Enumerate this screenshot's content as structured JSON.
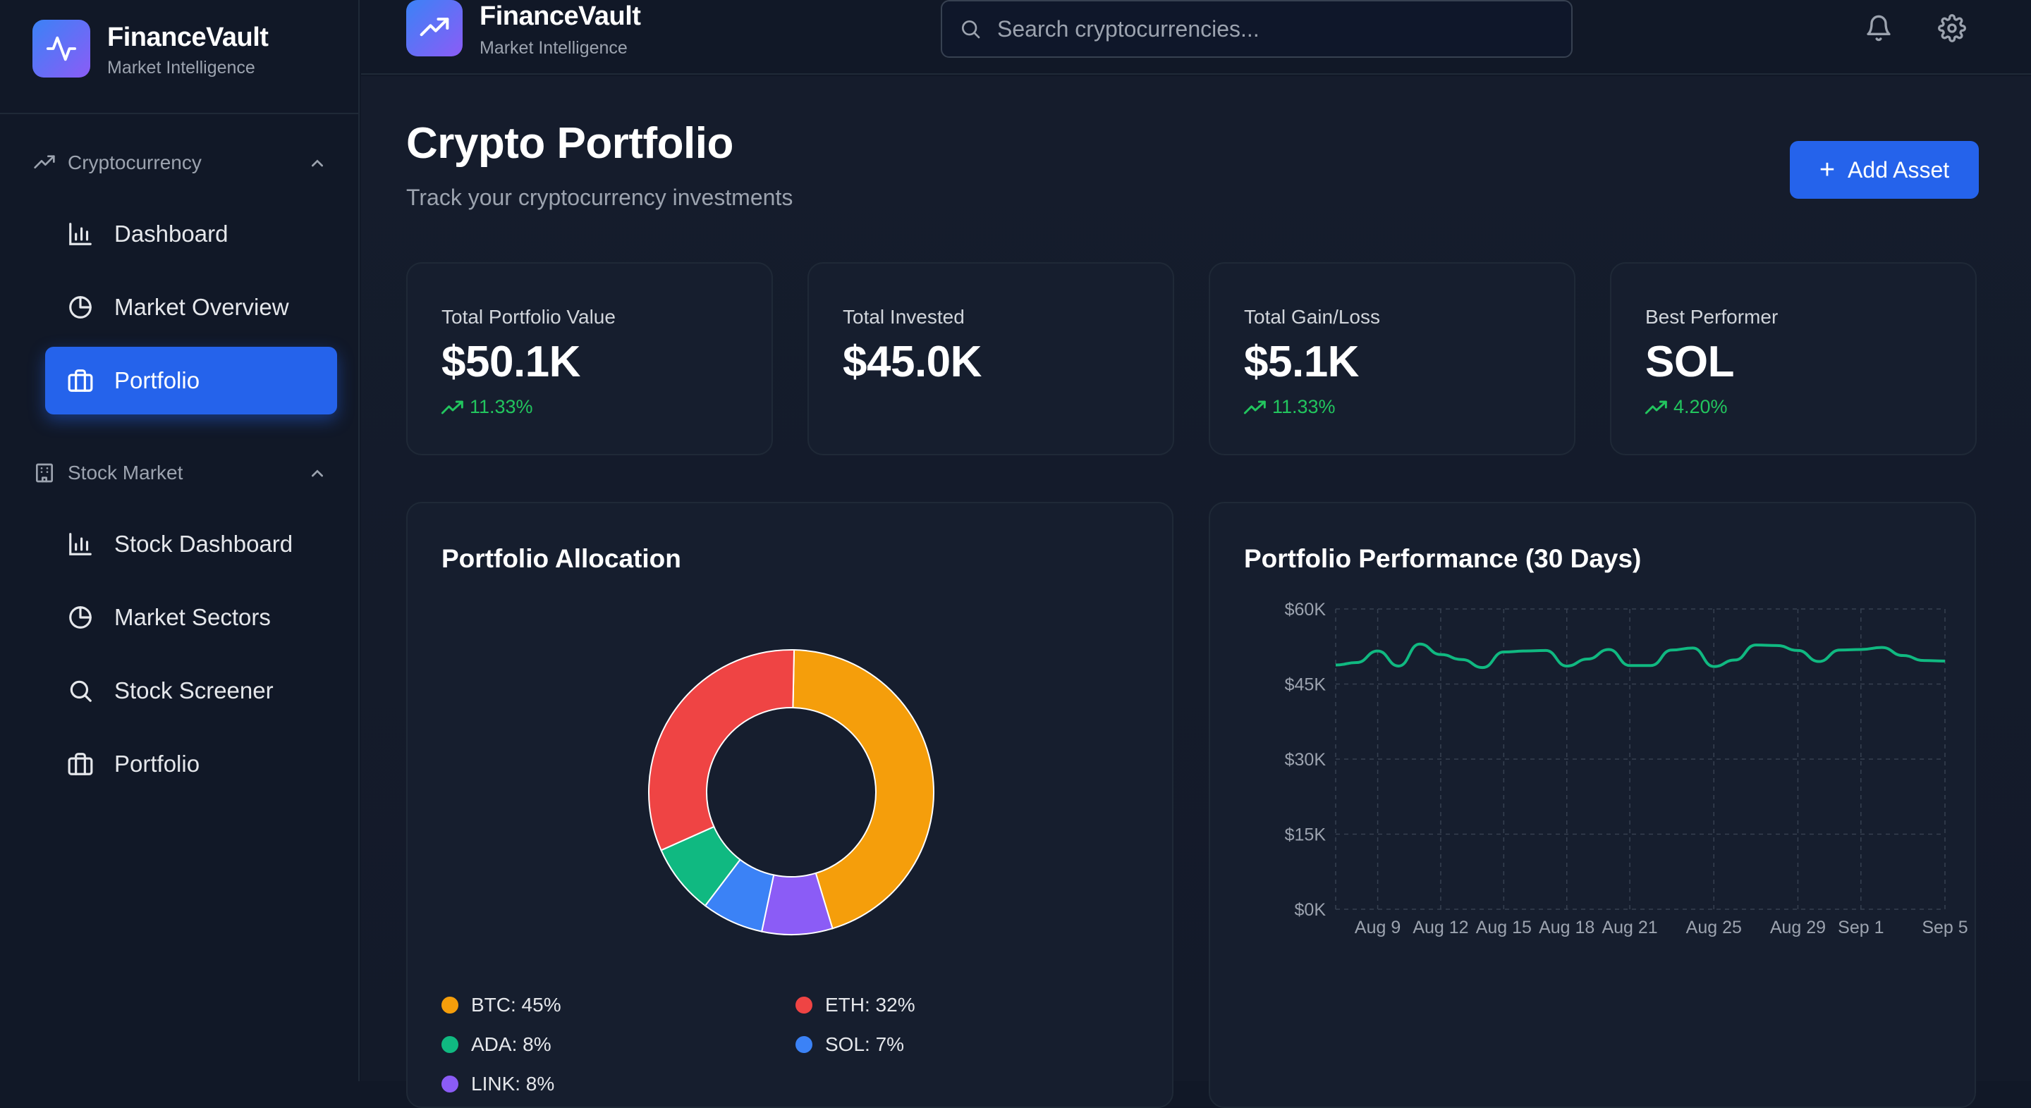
{
  "brand": {
    "name": "FinanceVault",
    "tagline": "Market Intelligence"
  },
  "header": {
    "search_placeholder": "Search cryptocurrencies..."
  },
  "sidebar": {
    "sections": [
      {
        "label": "Cryptocurrency",
        "items": [
          {
            "label": "Dashboard",
            "icon": "bar-chart-icon",
            "active": false
          },
          {
            "label": "Market Overview",
            "icon": "pie-chart-icon",
            "active": false
          },
          {
            "label": "Portfolio",
            "icon": "briefcase-icon",
            "active": true
          }
        ]
      },
      {
        "label": "Stock Market",
        "items": [
          {
            "label": "Stock Dashboard",
            "icon": "bar-chart-icon",
            "active": false
          },
          {
            "label": "Market Sectors",
            "icon": "pie-chart-icon",
            "active": false
          },
          {
            "label": "Stock Screener",
            "icon": "search-icon",
            "active": false
          },
          {
            "label": "Portfolio",
            "icon": "briefcase-icon",
            "active": false
          }
        ]
      }
    ]
  },
  "page": {
    "title": "Crypto Portfolio",
    "subtitle": "Track your cryptocurrency investments",
    "add_button": "Add Asset"
  },
  "stats": [
    {
      "label": "Total Portfolio Value",
      "value": "$50.1K",
      "change": "11.33%"
    },
    {
      "label": "Total Invested",
      "value": "$45.0K",
      "change": ""
    },
    {
      "label": "Total Gain/Loss",
      "value": "$5.1K",
      "change": "11.33%"
    },
    {
      "label": "Best Performer",
      "value": "SOL",
      "change": "4.20%"
    }
  ],
  "colors": {
    "accent": "#2563eb",
    "positive": "#22c55e",
    "btc": "#f59e0b",
    "eth": "#ef4444",
    "ada": "#10b981",
    "sol": "#3b82f6",
    "link": "#8b5cf6",
    "performance_line": "#10b981"
  },
  "allocation": {
    "title": "Portfolio Allocation",
    "legend": [
      "BTC: 45%",
      "ETH: 32%",
      "ADA: 8%",
      "SOL: 7%",
      "LINK: 8%"
    ]
  },
  "performance": {
    "title": "Portfolio Performance (30 Days)"
  },
  "chart_data": [
    {
      "type": "pie",
      "title": "Portfolio Allocation",
      "categories": [
        "BTC",
        "LINK",
        "SOL",
        "ADA",
        "ETH"
      ],
      "values": [
        45,
        8,
        7,
        8,
        32
      ],
      "colors": [
        "#f59e0b",
        "#8b5cf6",
        "#3b82f6",
        "#10b981",
        "#ef4444"
      ],
      "legend": "bottom"
    },
    {
      "type": "line",
      "title": "Portfolio Performance (30 Days)",
      "x": [
        "Aug 7",
        "Aug 8",
        "Aug 9",
        "Aug 10",
        "Aug 11",
        "Aug 12",
        "Aug 13",
        "Aug 14",
        "Aug 15",
        "Aug 16",
        "Aug 17",
        "Aug 18",
        "Aug 19",
        "Aug 20",
        "Aug 21",
        "Aug 22",
        "Aug 23",
        "Aug 24",
        "Aug 25",
        "Aug 26",
        "Aug 27",
        "Aug 28",
        "Aug 29",
        "Aug 30",
        "Aug 31",
        "Sep 1",
        "Sep 2",
        "Sep 3",
        "Sep 4",
        "Sep 5"
      ],
      "x_tick_labels": [
        "Aug 9",
        "Aug 12",
        "Aug 15",
        "Aug 18",
        "Aug 21",
        "Aug 25",
        "Aug 29",
        "Sep 1",
        "Sep 5"
      ],
      "series": [
        {
          "values": [
            48800,
            49300,
            51600,
            48600,
            53000,
            50900,
            49900,
            48300,
            51400,
            51600,
            51700,
            48600,
            50000,
            51900,
            48700,
            48700,
            51800,
            52200,
            48500,
            49800,
            52800,
            52700,
            51700,
            49500,
            51800,
            51900,
            52300,
            50700,
            49700,
            49600
          ]
        }
      ],
      "y_tick_labels": [
        "$0K",
        "$15K",
        "$30K",
        "$45K",
        "$60K"
      ],
      "ylim": [
        0,
        60000
      ],
      "grid": true
    }
  ]
}
